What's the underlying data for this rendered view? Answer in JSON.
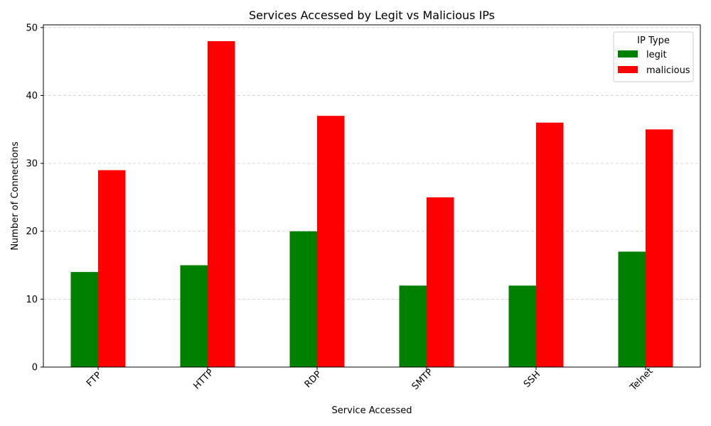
{
  "chart_data": {
    "type": "bar",
    "title": "Services Accessed by Legit vs Malicious IPs",
    "xlabel": "Service Accessed",
    "ylabel": "Number of Connections",
    "categories": [
      "FTP",
      "HTTP",
      "RDP",
      "SMTP",
      "SSH",
      "Telnet"
    ],
    "series": [
      {
        "name": "legit",
        "color": "#008000",
        "values": [
          14,
          15,
          20,
          12,
          12,
          17
        ]
      },
      {
        "name": "malicious",
        "color": "#ff0000",
        "values": [
          29,
          48,
          37,
          25,
          36,
          35
        ]
      }
    ],
    "ylim": [
      0,
      50.4
    ],
    "yticks": [
      0,
      10,
      20,
      30,
      40,
      50
    ],
    "grid": "y-dashed",
    "legend": {
      "title": "IP Type",
      "placement": "top-right"
    }
  }
}
